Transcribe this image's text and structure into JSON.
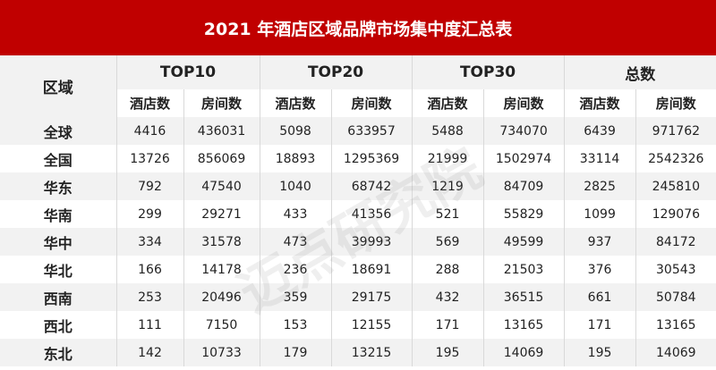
{
  "title": "2021 年酒店区域品牌市场集中度汇总表",
  "header": {
    "region": "区域",
    "groups": [
      "TOP10",
      "TOP20",
      "TOP30",
      "总数"
    ],
    "subheaders": [
      "酒店数",
      "房间数"
    ]
  },
  "watermark": "迈点研究院",
  "table": {
    "rows": [
      {
        "label": "全球",
        "values": [
          4416,
          436031,
          5098,
          633957,
          5488,
          734070,
          6439,
          971762
        ]
      },
      {
        "label": "全国",
        "values": [
          13726,
          856069,
          18893,
          1295369,
          21999,
          1502974,
          33114,
          2542326
        ]
      },
      {
        "label": "华东",
        "values": [
          792,
          47540,
          1040,
          68742,
          1219,
          84709,
          2825,
          245810
        ]
      },
      {
        "label": "华南",
        "values": [
          299,
          29271,
          433,
          41356,
          521,
          55829,
          1099,
          129076
        ]
      },
      {
        "label": "华中",
        "values": [
          334,
          31578,
          473,
          39993,
          569,
          49599,
          937,
          84172
        ]
      },
      {
        "label": "华北",
        "values": [
          166,
          14178,
          236,
          18691,
          288,
          21503,
          376,
          30543
        ]
      },
      {
        "label": "西南",
        "values": [
          253,
          20496,
          359,
          29175,
          432,
          36515,
          661,
          50784
        ]
      },
      {
        "label": "西北",
        "values": [
          111,
          7150,
          153,
          12155,
          171,
          13165,
          171,
          13165
        ]
      },
      {
        "label": "东北",
        "values": [
          142,
          10733,
          179,
          13215,
          195,
          14069,
          195,
          14069
        ]
      }
    ]
  }
}
